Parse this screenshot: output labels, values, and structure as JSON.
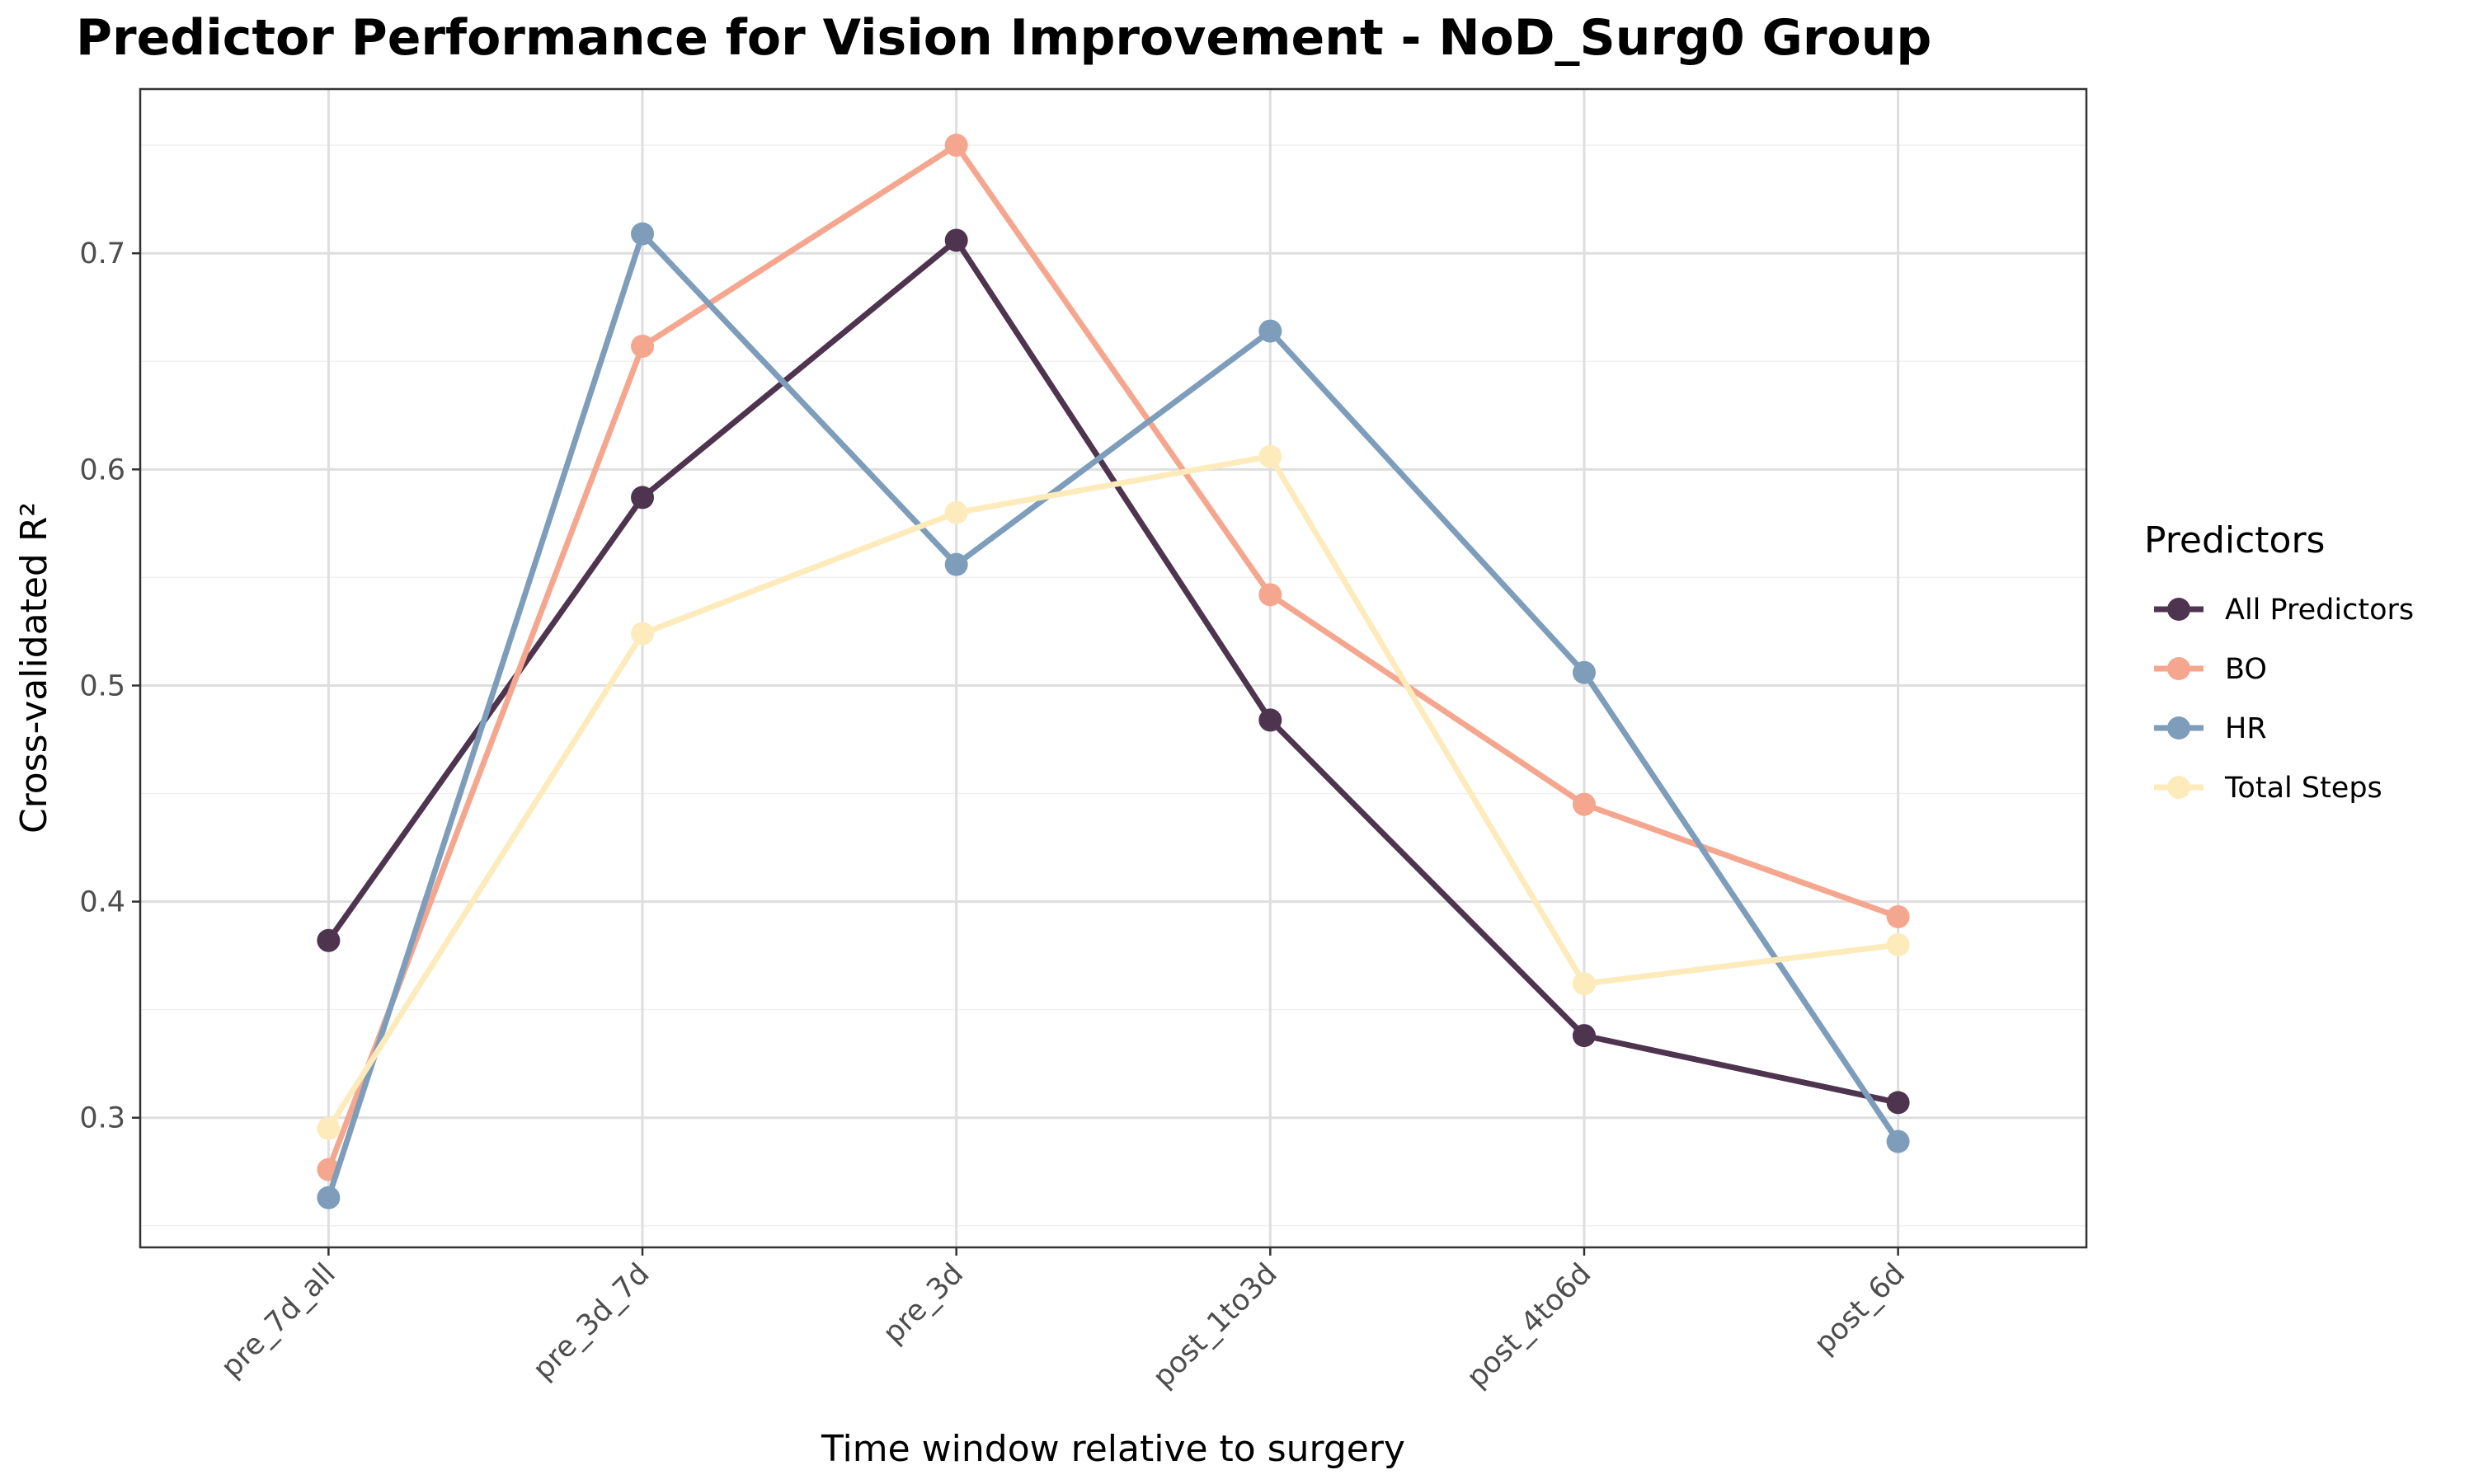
{
  "chart_data": {
    "type": "line",
    "title": "Predictor Performance for Vision Improvement - NoD_Surg0 Group",
    "xlabel": "Time window relative to surgery",
    "ylabel": "Cross-validated R²",
    "categories": [
      "pre_7d_all",
      "pre_3d_7d",
      "pre_3d",
      "post_1to3d",
      "post_4to6d",
      "post_6d"
    ],
    "ylim": [
      0.24,
      0.776
    ],
    "yticks": [
      "0.3",
      "0.4",
      "0.5",
      "0.6",
      "0.7"
    ],
    "ytick_values": [
      0.3,
      0.4,
      0.5,
      0.6,
      0.7
    ],
    "grid": true,
    "legend_title": "Predictors",
    "legend_position": "right",
    "series": [
      {
        "name": "All Predictors",
        "color": "#4e344f",
        "values": [
          0.382,
          0.587,
          0.706,
          0.484,
          0.338,
          0.307
        ]
      },
      {
        "name": "BO",
        "color": "#f5a68e",
        "values": [
          0.276,
          0.657,
          0.75,
          0.542,
          0.445,
          0.393
        ]
      },
      {
        "name": "HR",
        "color": "#7d9dbb",
        "values": [
          0.263,
          0.709,
          0.556,
          0.664,
          0.506,
          0.289
        ]
      },
      {
        "name": "Total Steps",
        "color": "#fdebbc",
        "values": [
          0.295,
          0.524,
          0.58,
          0.606,
          0.362,
          0.38
        ]
      }
    ]
  }
}
